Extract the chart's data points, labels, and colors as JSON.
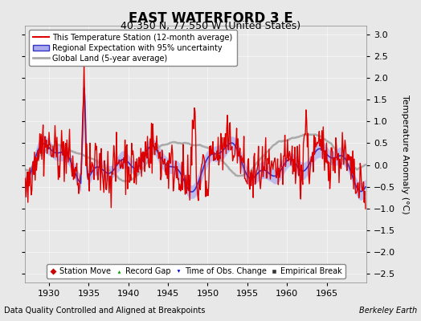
{
  "title": "EAST WATERFORD 3 E",
  "subtitle": "40.350 N, 77.550 W (United States)",
  "xlabel_left": "Data Quality Controlled and Aligned at Breakpoints",
  "xlabel_right": "Berkeley Earth",
  "ylabel": "Temperature Anomaly (°C)",
  "xlim": [
    1927,
    1970
  ],
  "ylim": [
    -2.7,
    3.2
  ],
  "yticks": [
    -2.5,
    -2,
    -1.5,
    -1,
    -0.5,
    0,
    0.5,
    1,
    1.5,
    2,
    2.5,
    3
  ],
  "xticks": [
    1930,
    1935,
    1940,
    1945,
    1950,
    1955,
    1960,
    1965
  ],
  "bg_color": "#e8e8e8",
  "plot_bg_color": "#e8e8e8",
  "station_color": "#dd0000",
  "regional_color": "#3333cc",
  "regional_fill_color": "#aaaaee",
  "global_color": "#aaaaaa",
  "legend_items": [
    {
      "label": "This Temperature Station (12-month average)",
      "color": "#dd0000",
      "lw": 1.5
    },
    {
      "label": "Regional Expectation with 95% uncertainty",
      "color": "#3333cc",
      "fill": "#aaaaee",
      "lw": 1.5
    },
    {
      "label": "Global Land (5-year average)",
      "color": "#aaaaaa",
      "lw": 2.0
    }
  ],
  "marker_items": [
    {
      "label": "Station Move",
      "color": "#cc0000",
      "marker": "D"
    },
    {
      "label": "Record Gap",
      "color": "#009900",
      "marker": "^"
    },
    {
      "label": "Time of Obs. Change",
      "color": "#0000cc",
      "marker": "v"
    },
    {
      "label": "Empirical Break",
      "color": "#333333",
      "marker": "s"
    }
  ]
}
